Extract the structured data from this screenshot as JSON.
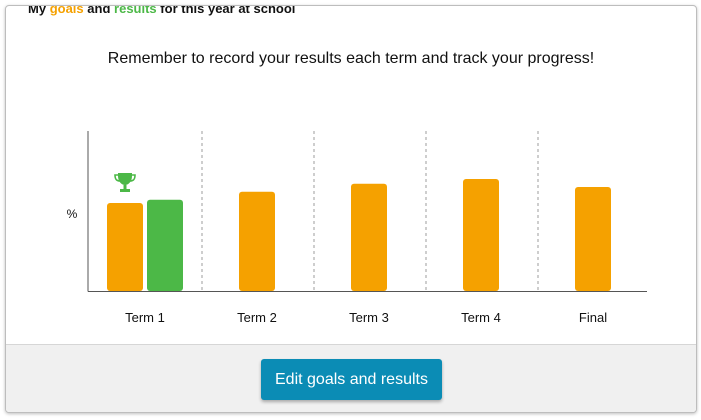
{
  "legend": {
    "prefix": "My",
    "goals_word": "goals",
    "and_word": "and",
    "results_word": "results",
    "suffix": "for this year at school"
  },
  "subtitle": "Remember to record your results each term and track your progress!",
  "colors": {
    "goal": "#f5a100",
    "result": "#4cb847",
    "button": "#0b8cb5",
    "divider": "#9e9e9e"
  },
  "chart_data": {
    "type": "bar",
    "ylabel": "%",
    "categories": [
      "Term 1",
      "Term 2",
      "Term 3",
      "Term 4",
      "Final"
    ],
    "ylim": [
      0,
      100
    ],
    "series": [
      {
        "name": "goals",
        "values": [
          55,
          62,
          67,
          70,
          65
        ]
      },
      {
        "name": "results",
        "values": [
          57,
          null,
          null,
          null,
          null
        ]
      }
    ],
    "trophy_icon": "trophy-icon",
    "grid": "dashed dividers between terms"
  },
  "button": {
    "label": "Edit goals and results"
  }
}
